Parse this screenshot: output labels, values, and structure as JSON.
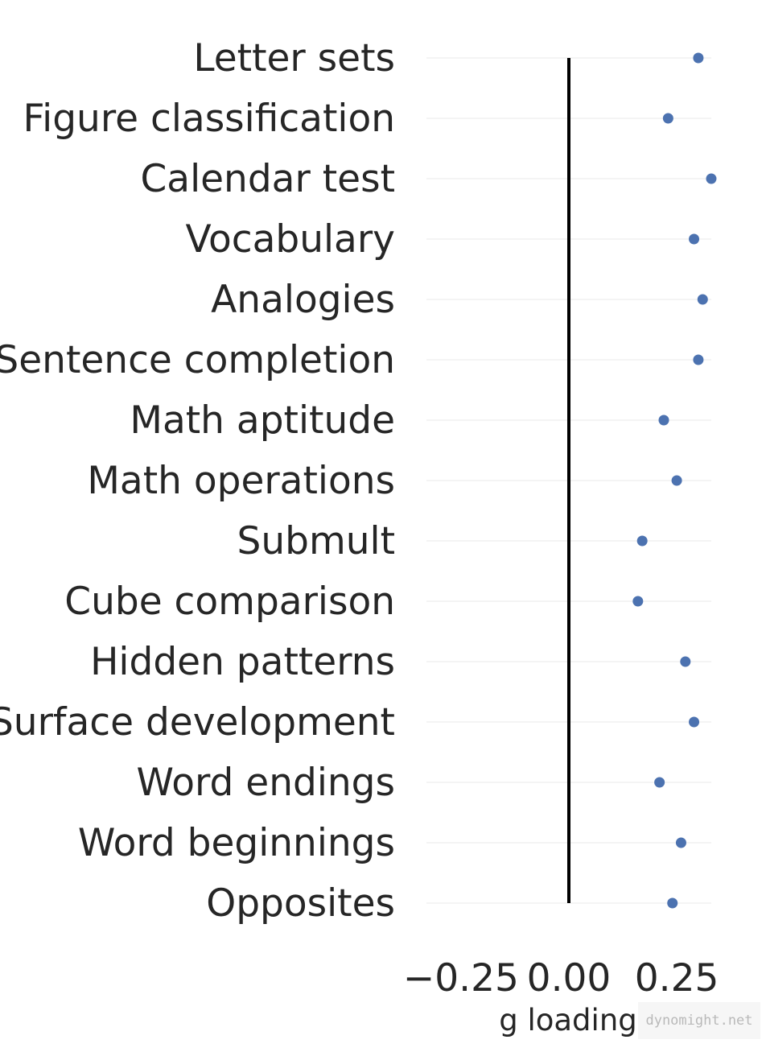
{
  "chart_data": {
    "type": "scatter",
    "orientation": "horizontal-dot",
    "categories": [
      "Letter sets",
      "Figure classification",
      "Calendar test",
      "Vocabulary",
      "Analogies",
      "Sentence completion",
      "Math aptitude",
      "Math operations",
      "Submult",
      "Cube comparison",
      "Hidden patterns",
      "Surface development",
      "Word endings",
      "Word beginnings",
      "Opposites"
    ],
    "values": [
      0.3,
      0.23,
      0.33,
      0.29,
      0.31,
      0.3,
      0.22,
      0.25,
      0.17,
      0.16,
      0.27,
      0.29,
      0.21,
      0.26,
      0.24
    ],
    "xlabel": "g loading",
    "ylabel": "",
    "xlim": [
      -0.33,
      0.33
    ],
    "xticks": [
      -0.25,
      0.0,
      0.25
    ],
    "xtick_labels": [
      "−0.25",
      "0.00",
      "0.25"
    ],
    "reference_line": 0.0,
    "grid": true,
    "legend": "none",
    "marker_color": "#4c72b0",
    "reference_color": "#000000"
  },
  "watermark": "dynomight.net"
}
